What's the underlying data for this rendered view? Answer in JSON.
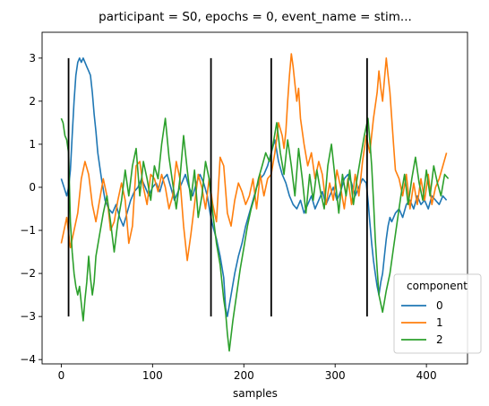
{
  "chart_data": {
    "type": "line",
    "title": "participant = S0, epochs = 0, event_name = stim...",
    "xlabel": "samples",
    "ylabel": "",
    "xlim": [
      -21,
      445
    ],
    "ylim": [
      -4.1,
      3.6
    ],
    "xticks": [
      0,
      100,
      200,
      300,
      400
    ],
    "yticks": [
      -4,
      -3,
      -2,
      -1,
      0,
      1,
      2,
      3
    ],
    "grid": false,
    "legend": {
      "title": "component",
      "placement": "lower-right"
    },
    "vlines": [
      {
        "x": 8,
        "ymin": -3,
        "ymax": 3
      },
      {
        "x": 164,
        "ymin": -3,
        "ymax": 3
      },
      {
        "x": 230,
        "ymin": -3,
        "ymax": 3
      },
      {
        "x": 335,
        "ymin": -3,
        "ymax": 3
      }
    ],
    "series": [
      {
        "name": "0",
        "color": "#1f77b4",
        "x": [
          0,
          3,
          6,
          8,
          10,
          12,
          14,
          16,
          18,
          20,
          22,
          24,
          26,
          28,
          30,
          32,
          34,
          36,
          38,
          40,
          44,
          48,
          52,
          56,
          60,
          64,
          68,
          72,
          76,
          80,
          84,
          88,
          92,
          96,
          100,
          104,
          108,
          112,
          116,
          120,
          124,
          128,
          132,
          136,
          140,
          144,
          148,
          152,
          156,
          160,
          163,
          166,
          170,
          174,
          178,
          180,
          182,
          186,
          190,
          194,
          198,
          202,
          206,
          210,
          214,
          218,
          222,
          226,
          230,
          234,
          238,
          242,
          246,
          250,
          254,
          258,
          262,
          266,
          270,
          274,
          278,
          282,
          286,
          290,
          294,
          298,
          302,
          306,
          310,
          314,
          318,
          322,
          326,
          330,
          334,
          336,
          338,
          340,
          342,
          344,
          346,
          348,
          350,
          352,
          354,
          356,
          358,
          360,
          362,
          366,
          370,
          374,
          378,
          382,
          386,
          390,
          394,
          398,
          402,
          406,
          410,
          414,
          418,
          422
        ],
        "values": [
          0.2,
          0.0,
          -0.2,
          0.0,
          0.4,
          1.2,
          2.0,
          2.6,
          2.9,
          3.0,
          2.9,
          3.0,
          2.9,
          2.8,
          2.7,
          2.6,
          2.2,
          1.7,
          1.3,
          0.8,
          0.2,
          -0.3,
          -0.5,
          -0.6,
          -0.4,
          -0.7,
          -0.9,
          -0.6,
          -0.3,
          -0.1,
          0.0,
          0.2,
          0.0,
          -0.2,
          0.0,
          0.1,
          -0.1,
          0.2,
          0.3,
          0.0,
          -0.3,
          -0.1,
          0.1,
          0.3,
          0.0,
          -0.2,
          0.1,
          0.3,
          0.1,
          -0.2,
          -0.6,
          -0.9,
          -1.2,
          -1.6,
          -2.1,
          -2.8,
          -3.0,
          -2.5,
          -2.0,
          -1.6,
          -1.3,
          -0.9,
          -0.6,
          -0.3,
          0.0,
          0.2,
          0.3,
          0.5,
          0.8,
          1.1,
          0.6,
          0.3,
          0.1,
          -0.2,
          -0.4,
          -0.5,
          -0.3,
          -0.6,
          -0.4,
          -0.2,
          -0.5,
          -0.3,
          -0.1,
          -0.4,
          -0.2,
          0.0,
          -0.3,
          -0.1,
          0.2,
          0.3,
          0.1,
          -0.2,
          0.0,
          0.2,
          0.1,
          -0.3,
          -0.8,
          -1.3,
          -1.7,
          -2.0,
          -2.3,
          -2.5,
          -2.2,
          -2.0,
          -1.6,
          -1.2,
          -0.9,
          -0.7,
          -0.8,
          -0.6,
          -0.5,
          -0.7,
          -0.4,
          -0.3,
          -0.5,
          -0.2,
          -0.4,
          -0.3,
          -0.5,
          -0.2,
          -0.3,
          -0.4,
          -0.2,
          -0.3
        ]
      },
      {
        "name": "1",
        "color": "#ff7f0e",
        "x": [
          0,
          3,
          6,
          10,
          14,
          18,
          22,
          26,
          30,
          34,
          38,
          42,
          46,
          50,
          54,
          58,
          62,
          66,
          70,
          74,
          78,
          82,
          86,
          90,
          94,
          98,
          102,
          106,
          110,
          114,
          118,
          122,
          126,
          130,
          134,
          138,
          142,
          146,
          150,
          154,
          158,
          162,
          166,
          170,
          174,
          178,
          182,
          186,
          190,
          194,
          198,
          202,
          206,
          210,
          214,
          218,
          222,
          226,
          230,
          234,
          238,
          242,
          244,
          246,
          248,
          250,
          252,
          254,
          256,
          258,
          260,
          262,
          266,
          270,
          274,
          278,
          282,
          286,
          290,
          294,
          298,
          302,
          306,
          310,
          314,
          318,
          322,
          326,
          330,
          334,
          338,
          342,
          346,
          348,
          350,
          352,
          354,
          356,
          358,
          360,
          362,
          364,
          366,
          370,
          374,
          378,
          382,
          386,
          390,
          394,
          398,
          402,
          406,
          410,
          414,
          418,
          422
        ],
        "values": [
          -1.3,
          -1.0,
          -0.7,
          -1.4,
          -1.0,
          -0.6,
          0.2,
          0.6,
          0.3,
          -0.4,
          -0.8,
          -0.3,
          0.2,
          -0.2,
          -1.0,
          -0.8,
          -0.3,
          0.1,
          -0.3,
          -1.3,
          -0.9,
          0.5,
          0.6,
          0.0,
          -0.4,
          0.3,
          0.2,
          -0.1,
          0.3,
          0.0,
          -0.5,
          -0.2,
          0.6,
          0.2,
          -0.9,
          -1.7,
          -1.1,
          -0.4,
          0.3,
          0.0,
          -0.5,
          0.2,
          -0.4,
          -0.8,
          0.7,
          0.5,
          -0.6,
          -0.9,
          -0.3,
          0.1,
          -0.1,
          -0.4,
          -0.2,
          0.2,
          -0.5,
          0.3,
          -0.2,
          0.2,
          0.3,
          0.8,
          1.5,
          1.2,
          0.9,
          1.3,
          2.0,
          2.6,
          3.1,
          2.8,
          2.4,
          2.0,
          2.3,
          1.6,
          1.0,
          0.5,
          0.8,
          0.2,
          0.6,
          0.3,
          -0.4,
          0.1,
          -0.3,
          0.4,
          0.0,
          -0.5,
          0.2,
          -0.4,
          0.3,
          -0.2,
          0.6,
          1.2,
          0.8,
          1.6,
          2.2,
          2.7,
          2.3,
          2.0,
          2.5,
          3.0,
          2.6,
          2.2,
          1.6,
          1.0,
          0.4,
          0.2,
          -0.2,
          0.3,
          -0.5,
          0.1,
          -0.4,
          0.2,
          -0.3,
          0.3,
          -0.4,
          0.0,
          0.2,
          0.5,
          0.8
        ]
      },
      {
        "name": "2",
        "color": "#2ca02c",
        "x": [
          0,
          2,
          4,
          6,
          8,
          10,
          12,
          14,
          16,
          18,
          20,
          22,
          24,
          26,
          28,
          30,
          32,
          34,
          36,
          38,
          42,
          46,
          50,
          54,
          58,
          62,
          66,
          70,
          74,
          78,
          82,
          86,
          90,
          94,
          98,
          102,
          106,
          110,
          114,
          118,
          122,
          126,
          130,
          134,
          138,
          142,
          146,
          150,
          154,
          158,
          162,
          166,
          170,
          174,
          176,
          178,
          180,
          182,
          184,
          188,
          192,
          196,
          200,
          204,
          208,
          212,
          216,
          220,
          224,
          228,
          232,
          236,
          240,
          244,
          248,
          252,
          256,
          260,
          264,
          268,
          272,
          276,
          280,
          284,
          288,
          292,
          296,
          300,
          304,
          308,
          312,
          316,
          320,
          324,
          328,
          332,
          336,
          338,
          340,
          342,
          344,
          346,
          348,
          352,
          356,
          360,
          364,
          368,
          372,
          376,
          380,
          384,
          388,
          392,
          396,
          400,
          404,
          408,
          412,
          416,
          420,
          424
        ],
        "values": [
          1.6,
          1.5,
          1.2,
          1.1,
          0.8,
          -0.8,
          -1.5,
          -2.0,
          -2.3,
          -2.5,
          -2.3,
          -2.7,
          -3.1,
          -2.6,
          -2.2,
          -1.6,
          -2.1,
          -2.5,
          -2.2,
          -1.6,
          -1.1,
          -0.6,
          -0.2,
          -0.8,
          -1.5,
          -0.8,
          -0.3,
          0.4,
          -0.2,
          0.5,
          0.9,
          -0.2,
          0.6,
          0.2,
          -0.3,
          0.5,
          0.2,
          1.0,
          1.6,
          0.7,
          0.1,
          -0.5,
          0.2,
          1.2,
          0.4,
          -0.3,
          0.4,
          -0.7,
          -0.2,
          0.6,
          0.2,
          -0.6,
          -1.3,
          -1.8,
          -2.2,
          -2.6,
          -2.9,
          -3.4,
          -3.8,
          -3.1,
          -2.5,
          -1.9,
          -1.4,
          -0.9,
          -0.5,
          -0.2,
          0.2,
          0.5,
          0.8,
          0.6,
          1.0,
          1.5,
          0.8,
          0.3,
          1.1,
          0.5,
          -0.2,
          0.9,
          0.2,
          -0.6,
          0.3,
          -0.3,
          0.4,
          -0.1,
          -0.5,
          0.5,
          1.0,
          0.2,
          -0.6,
          0.3,
          -0.2,
          0.4,
          -0.4,
          0.2,
          0.7,
          1.2,
          1.6,
          1.1,
          0.5,
          -0.3,
          -1.2,
          -1.9,
          -2.5,
          -2.9,
          -2.4,
          -2.0,
          -1.4,
          -0.8,
          -0.2,
          0.3,
          -0.4,
          0.2,
          0.7,
          0.1,
          -0.3,
          0.4,
          -0.2,
          0.5,
          0.1,
          -0.2,
          0.3,
          0.2
        ]
      }
    ]
  }
}
